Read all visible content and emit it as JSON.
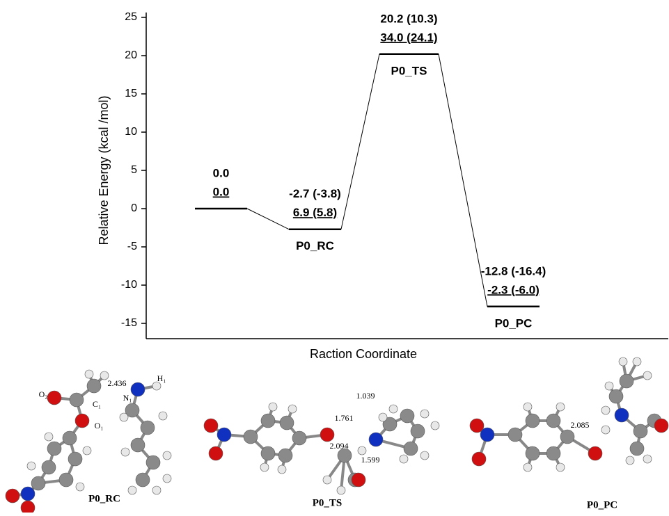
{
  "chart_data": {
    "type": "energy-profile",
    "y_label": "Relative Energy (kcal /mol)",
    "x_label": "Raction Coordinate",
    "categories": [
      null,
      "P0_RC",
      "P0_TS",
      "P0_PC"
    ],
    "values": [
      0,
      -2.7,
      20.2,
      -12.8
    ],
    "value_labels": [
      "0.0",
      "-2.7 (-3.8)",
      "20.2 (10.3)",
      "-12.8 (-16.4)"
    ],
    "second_labels": [
      "0.0",
      "6.9 (5.8)",
      "34.0 (24.1)",
      "-2.3 (-6.0)"
    ],
    "color": "#000000",
    "ylim": [
      -17,
      25
    ],
    "yticks": [
      -15,
      -10,
      -5,
      0,
      5,
      10,
      15,
      20,
      25
    ]
  },
  "molecules": [
    {
      "label": "P0_RC",
      "annotations": [
        "2.436",
        "H₁",
        "O₂",
        "C₁",
        "N₁",
        "O₁"
      ]
    },
    {
      "label": "P0_TS",
      "annotations": [
        "1.039",
        "1.761",
        "2.094",
        "1.599"
      ]
    },
    {
      "label": "P0_PC",
      "annotations": [
        "2.085"
      ]
    }
  ]
}
